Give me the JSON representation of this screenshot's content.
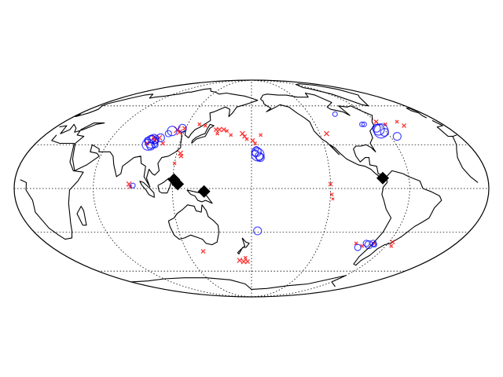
{
  "map": {
    "projection": "mollweide",
    "central_longitude": 180,
    "meridians_deg": [
      60,
      120,
      180,
      240,
      300
    ],
    "parallels_deg": [
      -60,
      -30,
      0,
      30,
      60
    ],
    "colors": {
      "land_outline": "#000000",
      "graticule": "#000000",
      "cross": "#ff0000",
      "circle": "#0000ff",
      "diamond": "#000000"
    }
  },
  "markers": {
    "diamonds": [
      {
        "lon": 121,
        "lat": 6
      },
      {
        "lon": 124,
        "lat": 3
      },
      {
        "lon": 144,
        "lat": -2
      },
      {
        "lon": 280,
        "lat": 7
      }
    ],
    "crosses": [
      {
        "lon": 96,
        "lat": 35,
        "size": 7
      },
      {
        "lon": 98,
        "lat": 33,
        "size": 6
      },
      {
        "lon": 93,
        "lat": 31,
        "size": 5
      },
      {
        "lon": 101,
        "lat": 35,
        "size": 6
      },
      {
        "lon": 106,
        "lat": 31,
        "size": 5
      },
      {
        "lon": 113,
        "lat": 41,
        "size": 8
      },
      {
        "lon": 116,
        "lat": 39,
        "size": 7
      },
      {
        "lon": 119,
        "lat": 42,
        "size": 5
      },
      {
        "lon": 131,
        "lat": 45,
        "size": 4
      },
      {
        "lon": 137,
        "lat": 44,
        "size": 4
      },
      {
        "lon": 148,
        "lat": 41,
        "size": 5
      },
      {
        "lon": 151,
        "lat": 41,
        "size": 6
      },
      {
        "lon": 155,
        "lat": 41,
        "size": 5
      },
      {
        "lon": 150,
        "lat": 38,
        "size": 4
      },
      {
        "lon": 158,
        "lat": 40,
        "size": 4
      },
      {
        "lon": 162,
        "lat": 37,
        "size": 4
      },
      {
        "lon": 172,
        "lat": 38,
        "size": 6
      },
      {
        "lon": 174,
        "lat": 36,
        "size": 5
      },
      {
        "lon": 176,
        "lat": 34,
        "size": 4
      },
      {
        "lon": 181,
        "lat": 33,
        "size": 5
      },
      {
        "lon": 183,
        "lat": 31,
        "size": 4
      },
      {
        "lon": 188,
        "lat": 37,
        "size": 4
      },
      {
        "lon": 123,
        "lat": 24,
        "size": 6
      },
      {
        "lon": 124,
        "lat": 22,
        "size": 5
      },
      {
        "lon": 120,
        "lat": 17,
        "size": 4
      },
      {
        "lon": 87,
        "lat": 3,
        "size": 6
      },
      {
        "lon": 88,
        "lat": 1,
        "size": 4
      },
      {
        "lon": 246,
        "lat": 38,
        "size": 6
      },
      {
        "lon": 240,
        "lat": 3,
        "size": 5
      },
      {
        "lon": 241,
        "lat": -4,
        "size": 4
      },
      {
        "lon": 242,
        "lat": -7,
        "size": 3
      },
      {
        "lon": 135,
        "lat": -44,
        "size": 5
      },
      {
        "lon": 168,
        "lat": -51,
        "size": 6
      },
      {
        "lon": 172,
        "lat": -52,
        "size": 6
      },
      {
        "lon": 176,
        "lat": -52,
        "size": 5
      },
      {
        "lon": 174,
        "lat": -49,
        "size": 4
      },
      {
        "lon": 288,
        "lat": -38,
        "size": 4
      },
      {
        "lon": 279,
        "lat": -40,
        "size": 4
      },
      {
        "lon": 272,
        "lat": -38,
        "size": 4
      },
      {
        "lon": 303,
        "lat": -37,
        "size": 5
      },
      {
        "lon": 305,
        "lat": -40,
        "size": 4
      },
      {
        "lon": 300,
        "lat": 47,
        "size": 5
      },
      {
        "lon": 306,
        "lat": 45,
        "size": 4
      },
      {
        "lon": 320,
        "lat": 47,
        "size": 4
      },
      {
        "lon": 322,
        "lat": 44,
        "size": 5
      }
    ],
    "circles": [
      {
        "lon": 97,
        "lat": 34,
        "r": 6
      },
      {
        "lon": 96,
        "lat": 32,
        "r": 8
      },
      {
        "lon": 95,
        "lat": 34,
        "r": 5
      },
      {
        "lon": 99,
        "lat": 33,
        "r": 4
      },
      {
        "lon": 102,
        "lat": 35,
        "r": 5
      },
      {
        "lon": 94,
        "lat": 30,
        "r": 7
      },
      {
        "lon": 92,
        "lat": 33,
        "r": 4
      },
      {
        "lon": 97,
        "lat": 29,
        "r": 5
      },
      {
        "lon": 100,
        "lat": 30,
        "r": 4
      },
      {
        "lon": 107,
        "lat": 38,
        "r": 4
      },
      {
        "lon": 109,
        "lat": 40,
        "r": 6
      },
      {
        "lon": 117,
        "lat": 42,
        "r": 5
      },
      {
        "lon": 90,
        "lat": 2,
        "r": 3
      },
      {
        "lon": 184,
        "lat": 25,
        "r": 6
      },
      {
        "lon": 185,
        "lat": 23,
        "r": 8
      },
      {
        "lon": 186,
        "lat": 22,
        "r": 5
      },
      {
        "lon": 183,
        "lat": 24,
        "r": 4
      },
      {
        "lon": 187,
        "lat": 21,
        "r": 5
      },
      {
        "lon": 184,
        "lat": 27,
        "r": 3
      },
      {
        "lon": 185,
        "lat": -29,
        "r": 5
      },
      {
        "lon": 267,
        "lat": 53,
        "r": 3
      },
      {
        "lon": 295,
        "lat": 41,
        "r": 7
      },
      {
        "lon": 296,
        "lat": 40,
        "r": 9
      },
      {
        "lon": 294,
        "lat": 42,
        "r": 5
      },
      {
        "lon": 298,
        "lat": 39,
        "r": 5
      },
      {
        "lon": 284,
        "lat": 45,
        "r": 3
      },
      {
        "lon": 286,
        "lat": 45,
        "r": 3
      },
      {
        "lon": 306,
        "lat": 36,
        "r": 5
      },
      {
        "lon": 276,
        "lat": -41,
        "r": 4
      },
      {
        "lon": 281,
        "lat": -38,
        "r": 4
      },
      {
        "lon": 284,
        "lat": -39,
        "r": 5
      },
      {
        "lon": 287,
        "lat": -38,
        "r": 4
      },
      {
        "lon": 289,
        "lat": -39,
        "r": 3
      }
    ]
  }
}
